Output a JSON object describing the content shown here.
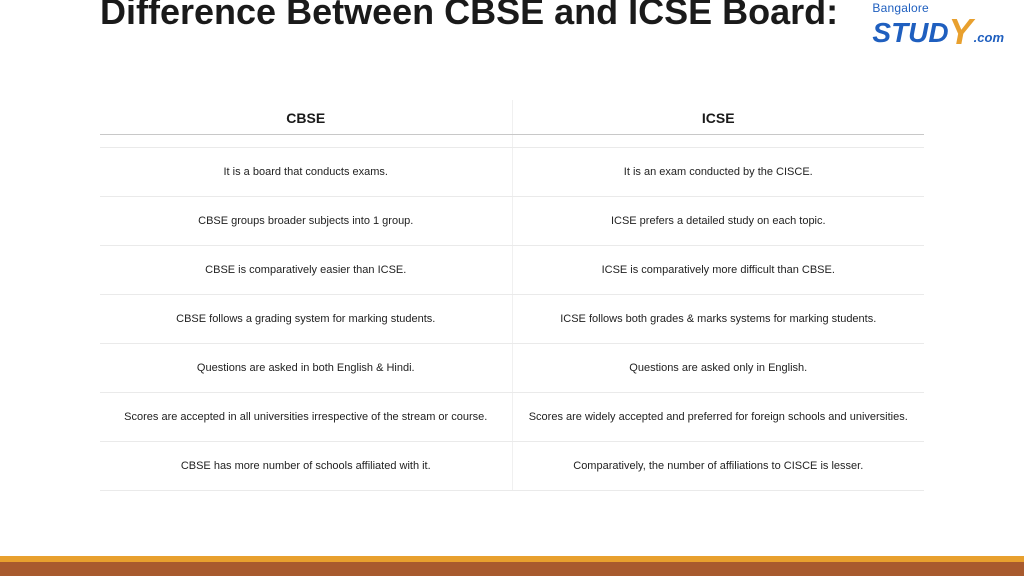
{
  "title": "Difference Between CBSE and ICSE Board:",
  "logo": {
    "top": "Bangalore",
    "main": "STUD",
    "y": "Y",
    "dotcom": ".com"
  },
  "table": {
    "columns": [
      "CBSE",
      "ICSE"
    ],
    "rows": [
      [
        "It is a board that conducts exams.",
        "It is an exam conducted by the CISCE."
      ],
      [
        "CBSE groups broader subjects into 1 group.",
        "ICSE prefers a detailed study on each topic."
      ],
      [
        "CBSE  is comparatively easier than ICSE.",
        "ICSE is comparatively more difficult than CBSE."
      ],
      [
        "CBSE follows a grading system for marking students.",
        "ICSE follows both grades & marks systems for marking students."
      ],
      [
        "Questions are asked in both English & Hindi.",
        "Questions are asked only in English."
      ],
      [
        "Scores are accepted in all universities irrespective of the stream or course.",
        "Scores are widely accepted and preferred for foreign schools and universities."
      ],
      [
        "CBSE has more number of schools affiliated with it.",
        "Comparatively, the number of affiliations to CISCE is lesser."
      ]
    ]
  },
  "colors": {
    "title": "#1a1a1a",
    "logo_blue": "#1f5fbf",
    "logo_orange": "#e8a02e",
    "footer_top": "#e8a02e",
    "footer_bottom": "#a85a2e",
    "header_border": "#c8c8c8",
    "row_border": "#eaeaea"
  }
}
